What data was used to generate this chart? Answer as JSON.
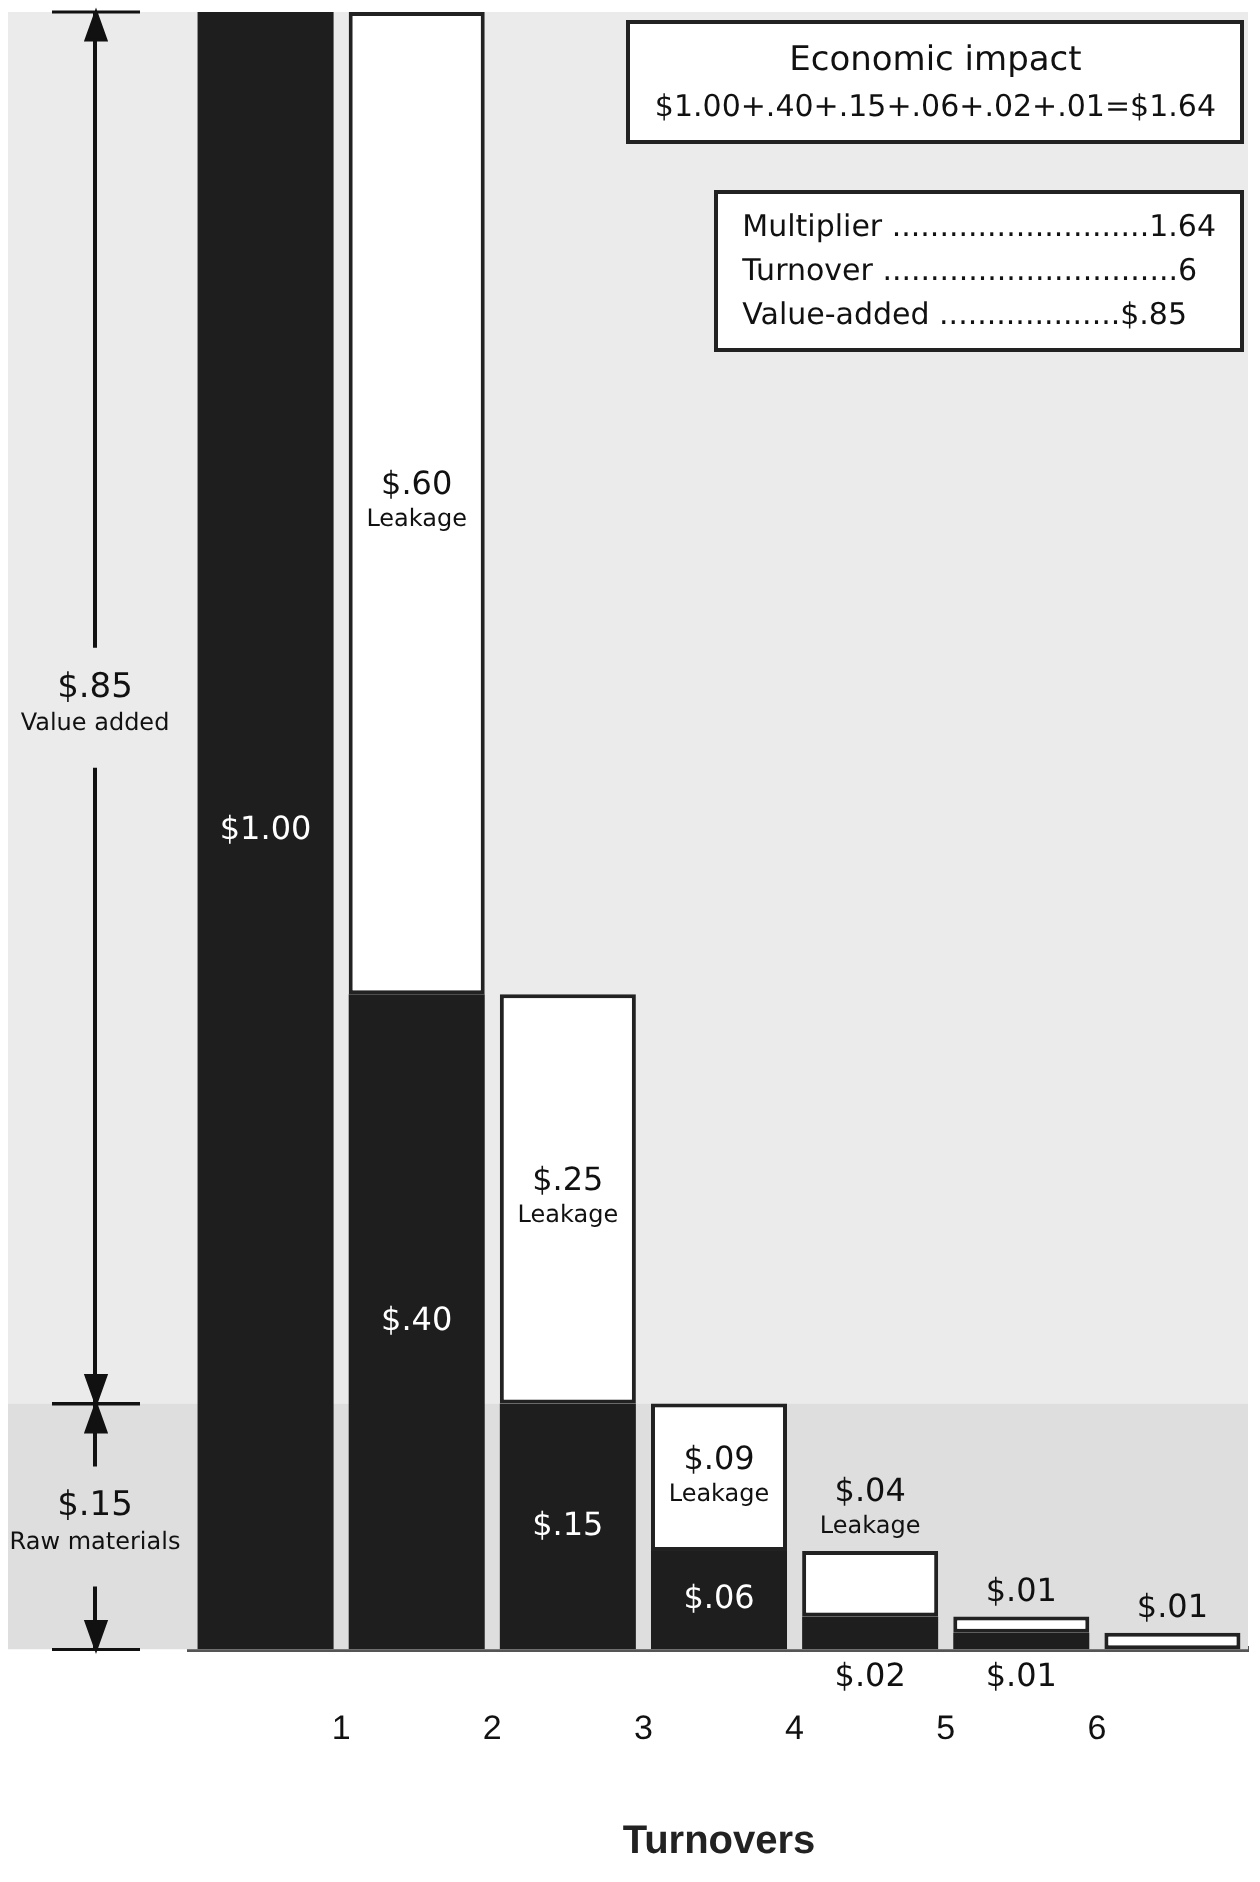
{
  "chart_data": {
    "type": "bar",
    "stacked": true,
    "xlabel": "Turnovers",
    "categories": [
      "1",
      "2",
      "3",
      "4",
      "5",
      "6",
      null
    ],
    "series": [
      {
        "color": "#1e1e1e",
        "values": [
          1.0,
          0.4,
          0.15,
          0.06,
          0.02,
          0.01,
          null
        ],
        "value_labels": [
          "$1.00",
          "$.40",
          "$.15",
          "$.06",
          "$.02",
          "$.01",
          null
        ]
      },
      {
        "color": "#ffffff",
        "values": [
          null,
          0.6,
          0.25,
          0.09,
          0.04,
          0.01,
          0.01
        ],
        "value_labels": [
          null,
          "$.60 Leakage",
          "$.25 Leakage",
          "$.09 Leakage",
          "$.04 Leakage",
          "$.01",
          "$.01"
        ]
      }
    ],
    "bands": [
      {
        "axis": "y",
        "from": 0.15,
        "to": 1.0,
        "label": "$.85 Value added"
      },
      {
        "axis": "y",
        "from": 0,
        "to": 0.15,
        "label": "$.15 Raw materials"
      }
    ],
    "annotations": [
      "Economic impact",
      "$1.00+.40+.15+.06+.02+.01=$1.64",
      "Multiplier ...........................1.64",
      "Turnover ...............................6",
      "Value-added ...................$.85"
    ],
    "grid": false,
    "legend": false
  }
}
